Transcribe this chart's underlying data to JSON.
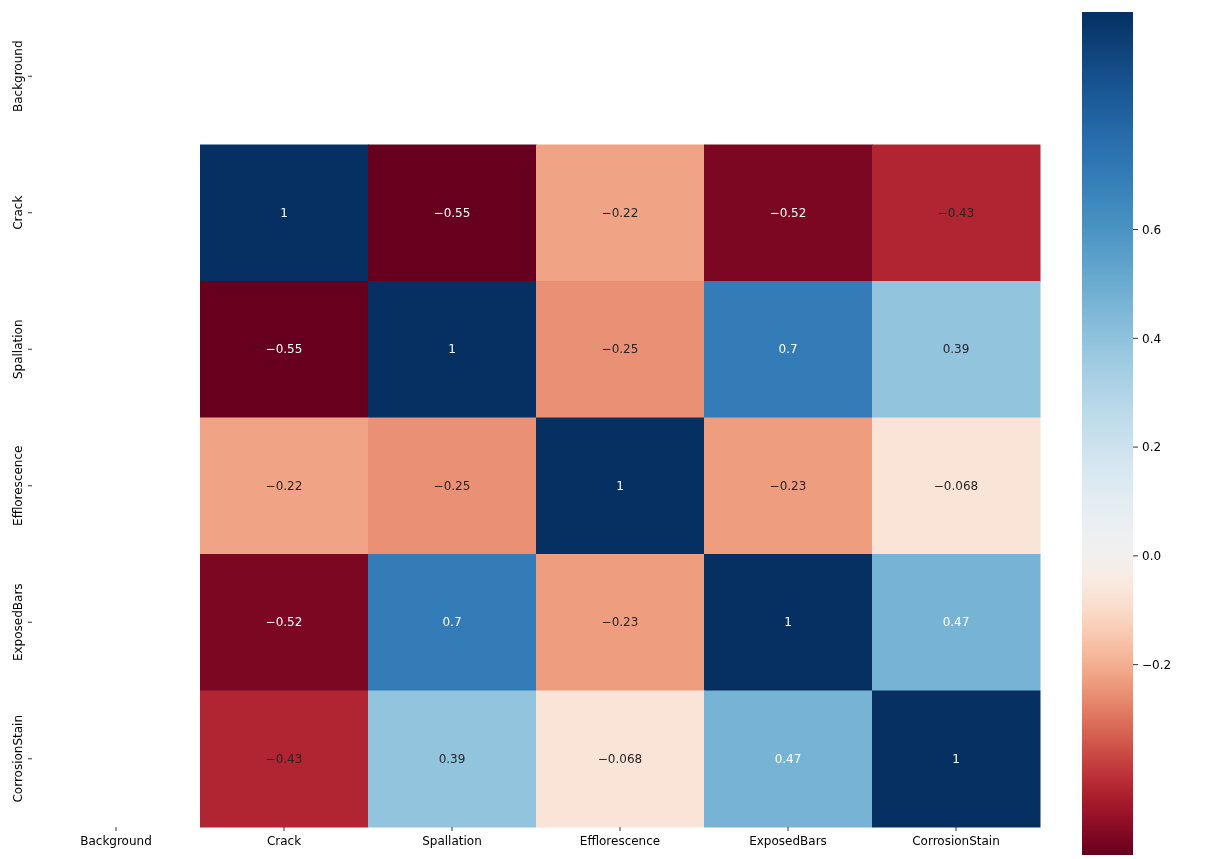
{
  "chart_data": {
    "type": "heatmap",
    "categories": [
      "Background",
      "Crack",
      "Spallation",
      "Efflorescence",
      "ExposedBars",
      "CorrosionStain"
    ],
    "y_categories": [
      "Background",
      "Crack",
      "Spallation",
      "Efflorescence",
      "ExposedBars",
      "CorrosionStain"
    ],
    "cells": [
      [
        null,
        null,
        null,
        null,
        null,
        null
      ],
      [
        null,
        1,
        -0.55,
        -0.22,
        -0.52,
        -0.43
      ],
      [
        null,
        -0.55,
        1,
        -0.25,
        0.7,
        0.39
      ],
      [
        null,
        -0.22,
        -0.25,
        1,
        -0.23,
        -0.068
      ],
      [
        null,
        -0.52,
        0.7,
        -0.23,
        1,
        0.47
      ],
      [
        null,
        -0.43,
        0.39,
        -0.068,
        0.47,
        1
      ]
    ],
    "data_labels": true,
    "clim": [
      -0.55,
      1
    ],
    "cticks": [
      {
        "value": -0.2,
        "label": "−0.2"
      },
      {
        "value": 0,
        "label": "0.0"
      },
      {
        "value": 0.2,
        "label": "0.2"
      },
      {
        "value": 0.4,
        "label": "0.4"
      },
      {
        "value": 0.6,
        "label": "0.6"
      }
    ]
  }
}
